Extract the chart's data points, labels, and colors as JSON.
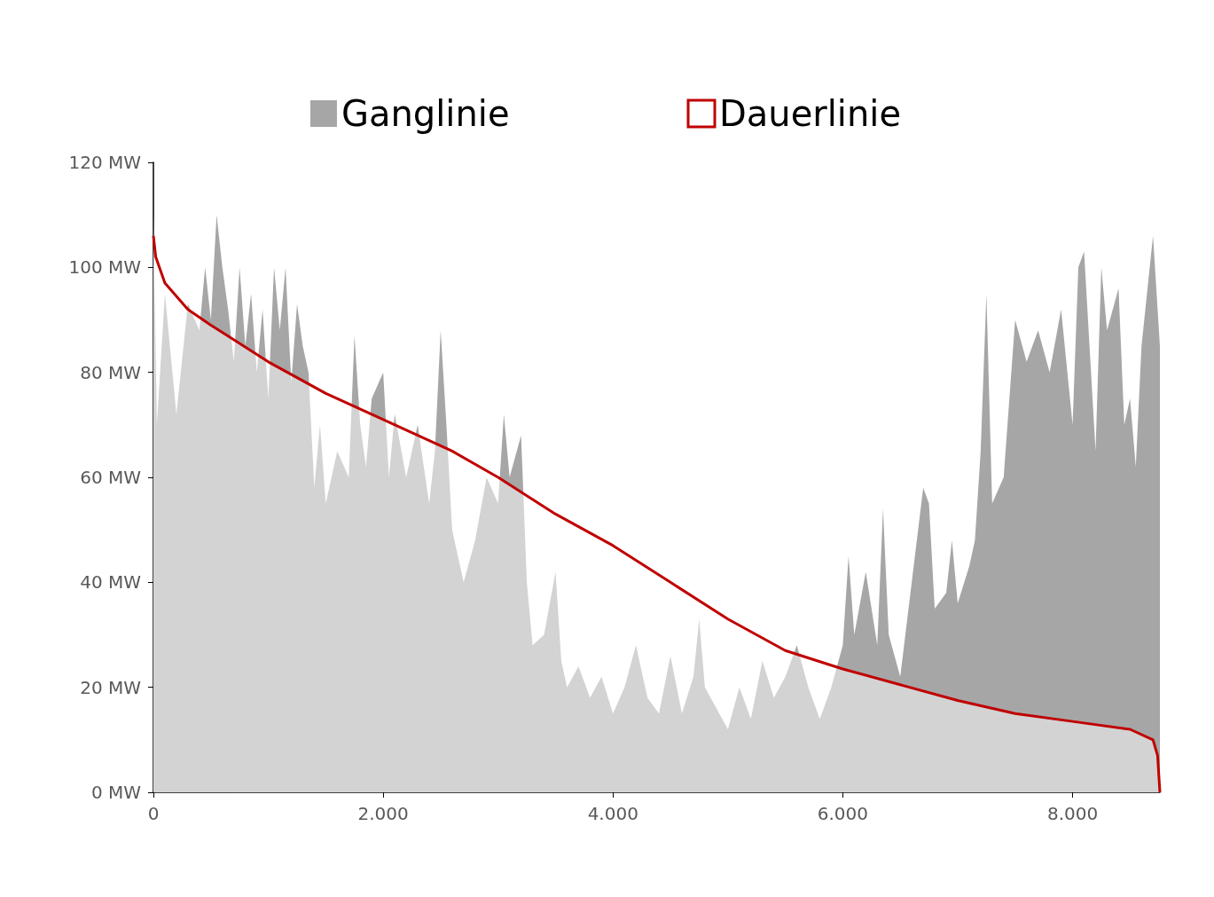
{
  "chart_data": {
    "type": "area",
    "xlim": [
      0,
      8760
    ],
    "ylim": [
      0,
      120
    ],
    "xticks": [
      0,
      {
        "value": 2000,
        "label": "2.000"
      },
      {
        "value": 4000,
        "label": "4.000"
      },
      {
        "value": 6000,
        "label": "6.000"
      },
      {
        "value": 8000,
        "label": "8.000"
      }
    ],
    "yticks": [
      {
        "value": 0,
        "label": "0 MW"
      },
      {
        "value": 20,
        "label": "20 MW"
      },
      {
        "value": 40,
        "label": "40 MW"
      },
      {
        "value": 60,
        "label": "60 MW"
      },
      {
        "value": 80,
        "label": "80 MW"
      },
      {
        "value": 100,
        "label": "100 MW"
      },
      {
        "value": 120,
        "label": "120 MW"
      }
    ],
    "grid": false,
    "legend": "top",
    "marker": "none",
    "series": [
      {
        "name": "Ganglinie",
        "color": "#a6a6a6",
        "x": [
          0,
          30,
          100,
          200,
          300,
          400,
          450,
          500,
          550,
          600,
          650,
          700,
          750,
          800,
          850,
          900,
          950,
          1000,
          1050,
          1100,
          1150,
          1200,
          1250,
          1300,
          1350,
          1400,
          1450,
          1500,
          1600,
          1700,
          1750,
          1800,
          1850,
          1900,
          2000,
          2050,
          2100,
          2200,
          2300,
          2400,
          2450,
          2500,
          2550,
          2600,
          2650,
          2700,
          2800,
          2900,
          3000,
          3050,
          3100,
          3200,
          3250,
          3300,
          3400,
          3500,
          3550,
          3600,
          3700,
          3800,
          3900,
          4000,
          4100,
          4200,
          4300,
          4400,
          4500,
          4600,
          4700,
          4750,
          4800,
          4900,
          5000,
          5100,
          5200,
          5300,
          5400,
          5500,
          5600,
          5700,
          5800,
          5900,
          6000,
          6050,
          6100,
          6200,
          6300,
          6350,
          6400,
          6500,
          6600,
          6700,
          6750,
          6800,
          6900,
          6950,
          7000,
          7100,
          7150,
          7200,
          7250,
          7300,
          7400,
          7500,
          7600,
          7700,
          7800,
          7900,
          8000,
          8050,
          8100,
          8200,
          8250,
          8300,
          8400,
          8450,
          8500,
          8550,
          8600,
          8700,
          8760
        ],
        "values": [
          110,
          70,
          95,
          72,
          93,
          88,
          100,
          90,
          110,
          100,
          92,
          82,
          100,
          85,
          95,
          80,
          92,
          75,
          100,
          88,
          100,
          78,
          93,
          85,
          80,
          58,
          70,
          55,
          65,
          60,
          87,
          70,
          62,
          75,
          80,
          60,
          72,
          60,
          70,
          55,
          65,
          88,
          70,
          50,
          45,
          40,
          48,
          60,
          55,
          72,
          60,
          68,
          40,
          28,
          30,
          42,
          25,
          20,
          24,
          18,
          22,
          15,
          20,
          28,
          18,
          15,
          26,
          15,
          22,
          33,
          20,
          16,
          12,
          20,
          14,
          25,
          18,
          22,
          28,
          20,
          14,
          20,
          28,
          45,
          30,
          42,
          28,
          54,
          30,
          22,
          40,
          58,
          55,
          35,
          38,
          48,
          36,
          43,
          48,
          65,
          95,
          55,
          60,
          90,
          82,
          88,
          80,
          92,
          70,
          100,
          103,
          65,
          100,
          88,
          96,
          70,
          75,
          62,
          85,
          106,
          85
        ]
      },
      {
        "name": "Dauerlinie",
        "color": "#c00000",
        "x": [
          0,
          20,
          100,
          300,
          500,
          1000,
          1500,
          2000,
          2600,
          3000,
          3500,
          4000,
          4500,
          5000,
          5500,
          6000,
          6500,
          7000,
          7500,
          8000,
          8500,
          8700,
          8740,
          8760
        ],
        "values": [
          106,
          102,
          97,
          92,
          89,
          82,
          76,
          71,
          65,
          60,
          53,
          47,
          40,
          33,
          27,
          23.5,
          20.5,
          17.5,
          15,
          13.5,
          12,
          10,
          7,
          0
        ]
      }
    ]
  }
}
